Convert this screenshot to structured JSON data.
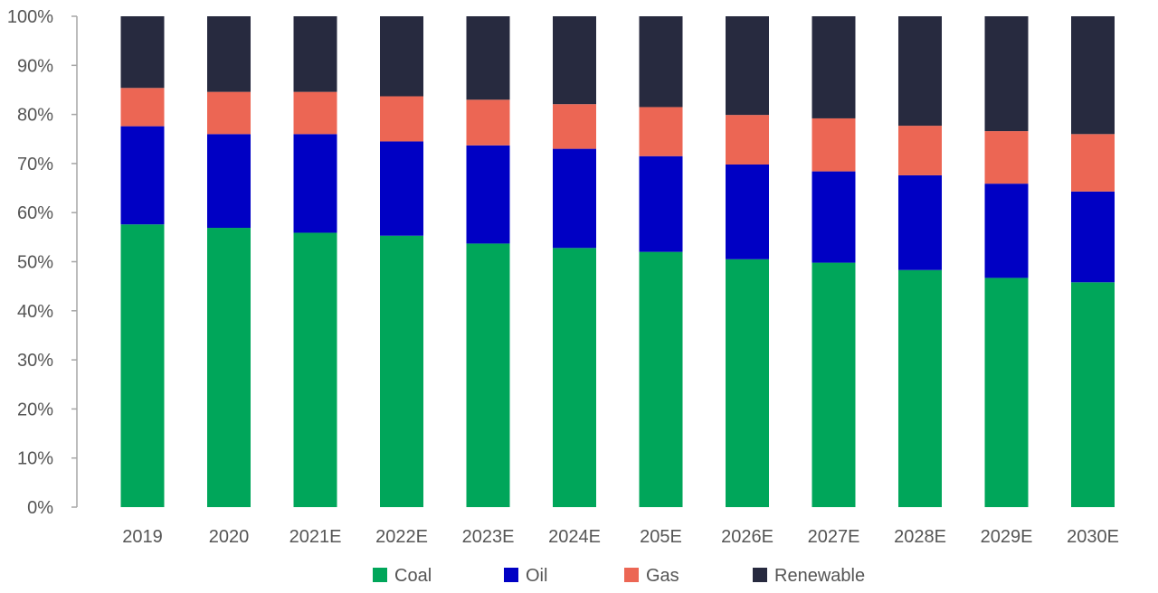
{
  "chart_data": {
    "type": "bar",
    "stacked": true,
    "title": "",
    "xlabel": "",
    "ylabel": "",
    "ylim": [
      0,
      100
    ],
    "y_ticks": [
      "0%",
      "10%",
      "20%",
      "30%",
      "40%",
      "50%",
      "60%",
      "70%",
      "80%",
      "90%",
      "100%"
    ],
    "categories": [
      "2019",
      "2020",
      "2021E",
      "2022E",
      "2023E",
      "2024E",
      "205E",
      "2026E",
      "2027E",
      "2028E",
      "2029E",
      "2030E"
    ],
    "series": [
      {
        "name": "Coal",
        "color": "#00a65a",
        "values": [
          57.6,
          56.9,
          55.9,
          55.3,
          53.7,
          52.8,
          52.0,
          50.5,
          49.8,
          48.3,
          46.7,
          45.8
        ]
      },
      {
        "name": "Oil",
        "color": "#0000c4",
        "values": [
          20.0,
          19.1,
          20.1,
          19.2,
          20.0,
          20.2,
          19.5,
          19.3,
          18.6,
          19.3,
          19.2,
          18.5
        ]
      },
      {
        "name": "Gas",
        "color": "#ec6654",
        "values": [
          7.8,
          8.6,
          8.6,
          9.2,
          9.3,
          9.1,
          10.0,
          10.1,
          10.8,
          10.1,
          10.7,
          11.7
        ]
      },
      {
        "name": "Renewable",
        "color": "#272a3f",
        "values": [
          14.6,
          15.4,
          15.4,
          16.3,
          17.0,
          17.9,
          18.5,
          20.1,
          20.8,
          22.3,
          23.4,
          24.0
        ]
      }
    ],
    "grid": false,
    "legend_position": "bottom"
  }
}
